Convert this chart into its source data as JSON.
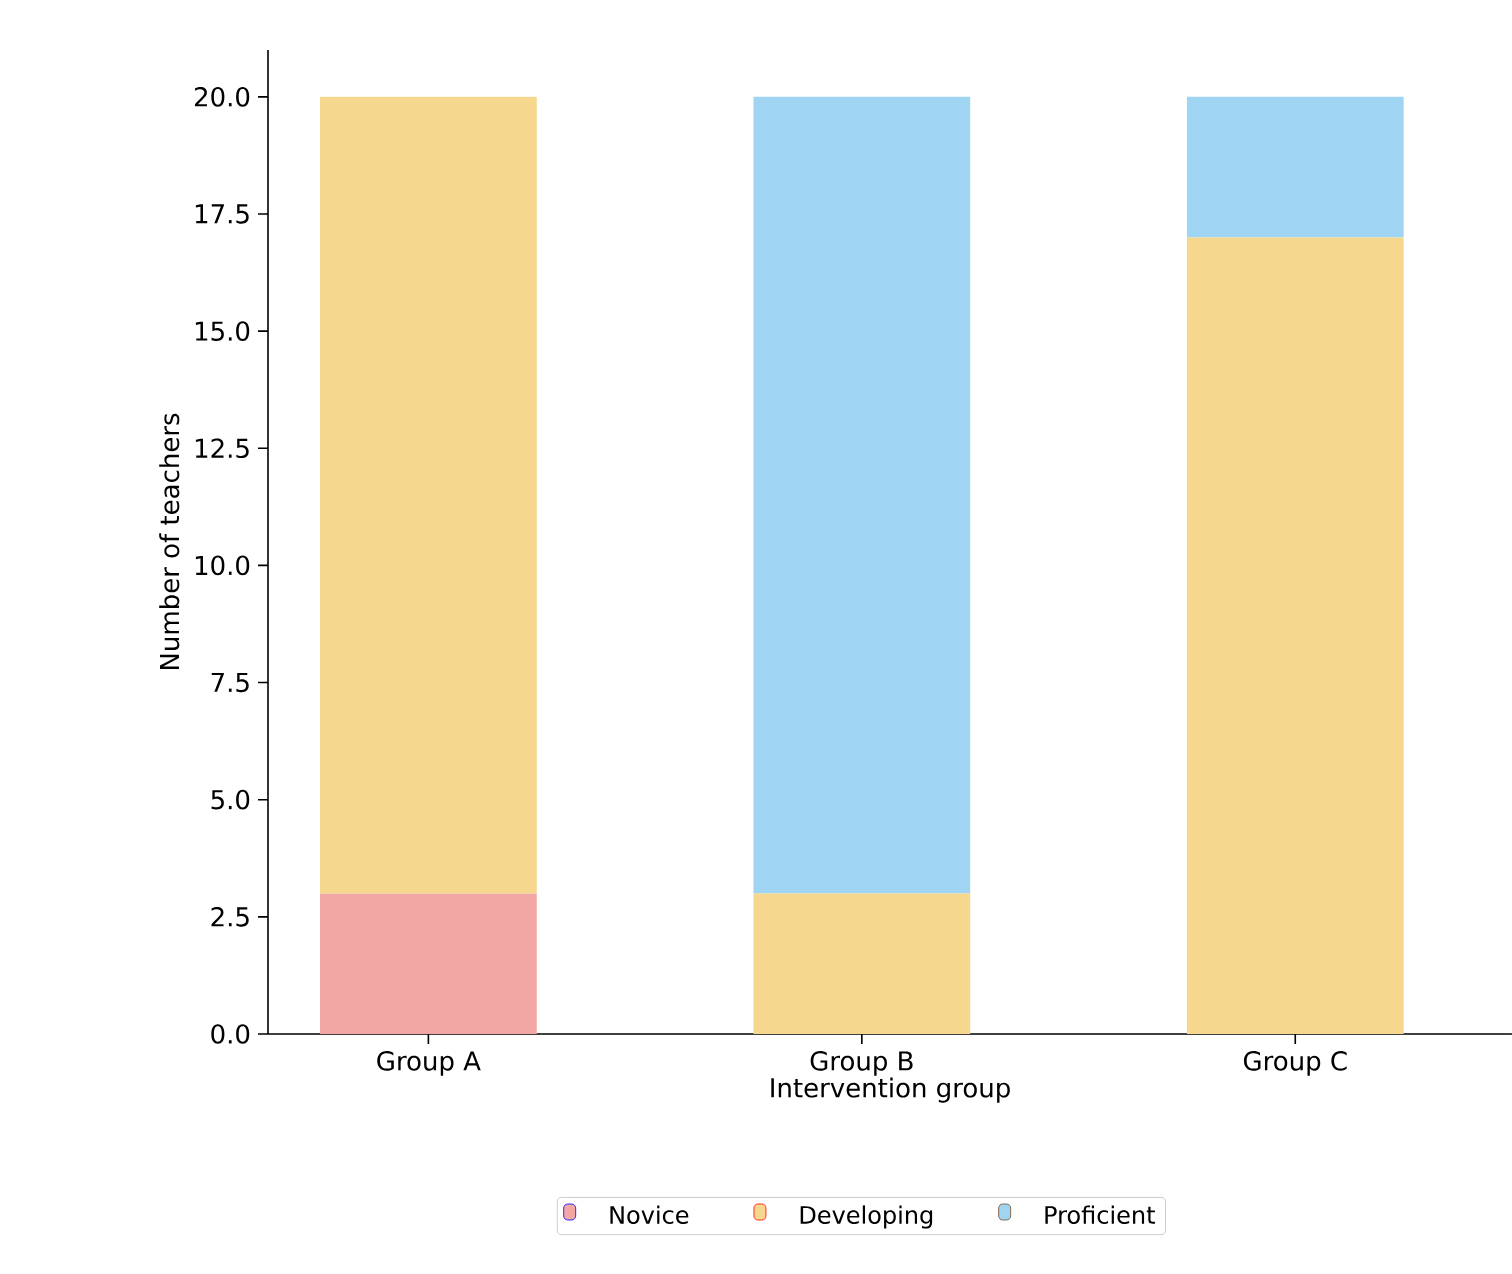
{
  "chart_data": {
    "type": "bar",
    "stacked": true,
    "xlabel": "Intervention group",
    "ylabel": "Number of teachers",
    "categories": [
      "Group A",
      "Group B",
      "Group C"
    ],
    "series": [
      {
        "name": "Novice",
        "color": "#f2a7a5",
        "values": [
          3,
          0,
          0
        ]
      },
      {
        "name": "Developing",
        "color": "#f5d78e",
        "values": [
          17,
          3,
          17
        ]
      },
      {
        "name": "Proficient",
        "color": "#9fd4f3",
        "values": [
          0,
          17,
          3
        ]
      }
    ],
    "ylim": [
      0,
      21
    ],
    "yticks": [
      {
        "value": 0,
        "label": "0.0"
      },
      {
        "value": 2.5,
        "label": "2.5"
      },
      {
        "value": 5,
        "label": "5.0"
      },
      {
        "value": 7.5,
        "label": "7.5"
      },
      {
        "value": 10,
        "label": "10.0"
      },
      {
        "value": 12.5,
        "label": "12.5"
      },
      {
        "value": 15,
        "label": "15.0"
      },
      {
        "value": 17.5,
        "label": "17.5"
      },
      {
        "value": 20,
        "label": "20.0"
      }
    ],
    "grid": false,
    "legend": "bottom"
  }
}
